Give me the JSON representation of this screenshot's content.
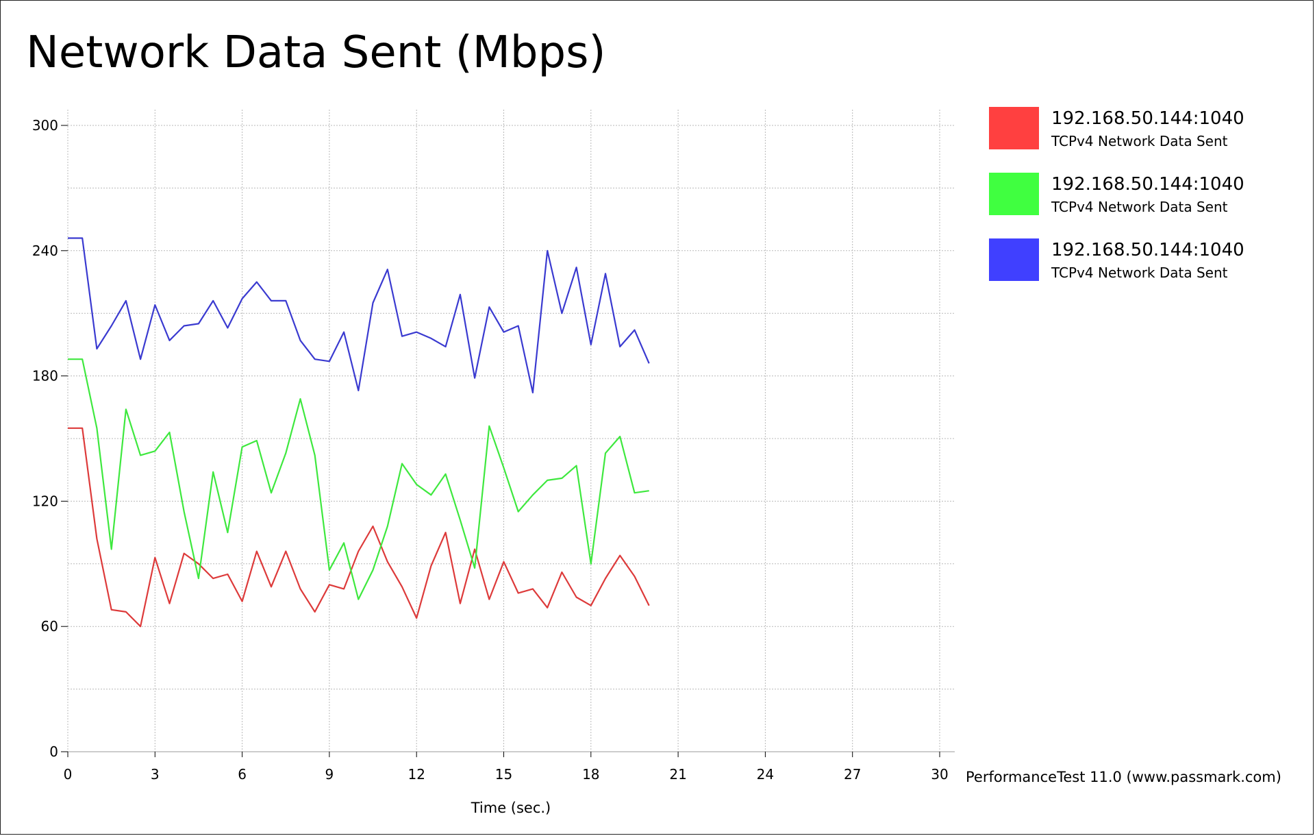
{
  "chart_data": {
    "type": "line",
    "title": "Network Data Sent (Mbps)",
    "xlabel": "Time (sec.)",
    "ylabel": "",
    "xlim": [
      0,
      30
    ],
    "ylim": [
      0,
      300
    ],
    "x_ticks": [
      0,
      3,
      6,
      9,
      12,
      15,
      18,
      21,
      24,
      27,
      30
    ],
    "y_ticks": [
      0,
      60,
      120,
      180,
      240,
      300
    ],
    "grid": true,
    "legend_position": "right",
    "x": [
      0,
      0.5,
      1,
      1.5,
      2,
      2.5,
      3,
      3.5,
      4,
      4.5,
      5,
      5.5,
      6,
      6.5,
      7,
      7.5,
      8,
      8.5,
      9,
      9.5,
      10,
      10.5,
      11,
      11.5,
      12,
      12.5,
      13,
      13.5,
      14,
      14.5,
      15,
      15.5,
      16,
      16.5,
      17,
      17.5,
      18,
      18.5,
      19,
      19.5,
      20
    ],
    "series": [
      {
        "name": "192.168.50.144:1040",
        "description": "TCPv4 Network Data Sent",
        "color": "#ff4040",
        "values": [
          155,
          155,
          102,
          68,
          67,
          60,
          93,
          71,
          95,
          90,
          83,
          85,
          72,
          96,
          79,
          96,
          78,
          67,
          80,
          78,
          96,
          108,
          91,
          79,
          64,
          89,
          105,
          71,
          97,
          73,
          91,
          76,
          78,
          69,
          86,
          74,
          70,
          83,
          94,
          84,
          70
        ]
      },
      {
        "name": "192.168.50.144:1040",
        "description": "TCPv4 Network Data Sent",
        "color": "#40ff40",
        "values": [
          188,
          188,
          155,
          97,
          164,
          142,
          144,
          153,
          115,
          83,
          134,
          105,
          146,
          149,
          124,
          143,
          169,
          142,
          87,
          100,
          73,
          87,
          108,
          138,
          128,
          123,
          133,
          111,
          88,
          156,
          136,
          115,
          123,
          130,
          131,
          137,
          90,
          143,
          151,
          124,
          125
        ]
      },
      {
        "name": "192.168.50.144:1040",
        "description": "TCPv4 Network Data Sent",
        "color": "#4040ff",
        "values": [
          246,
          246,
          193,
          204,
          216,
          188,
          214,
          197,
          204,
          205,
          216,
          203,
          217,
          225,
          216,
          216,
          197,
          188,
          187,
          201,
          173,
          215,
          231,
          199,
          201,
          198,
          194,
          219,
          179,
          213,
          201,
          204,
          172,
          240,
          210,
          232,
          195,
          229,
          194,
          202,
          186
        ]
      }
    ]
  },
  "footer": {
    "credit": "PerformanceTest 11.0 (www.passmark.com)"
  }
}
